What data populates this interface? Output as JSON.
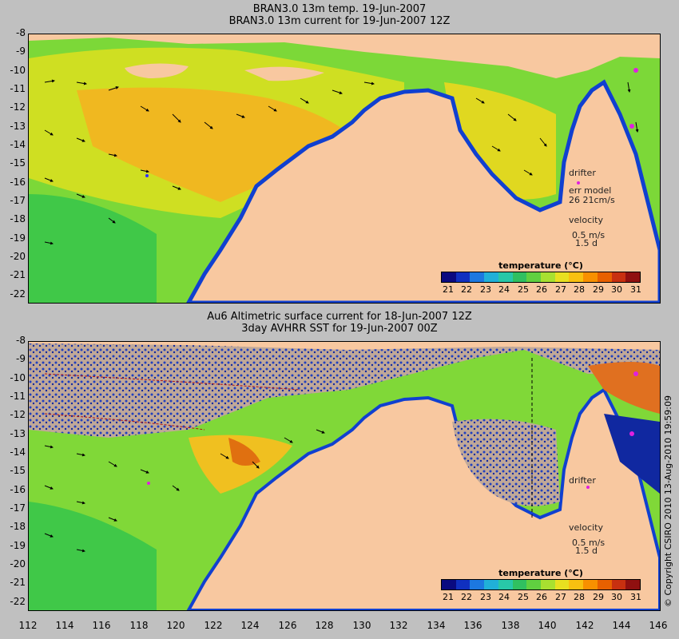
{
  "panel1": {
    "title_line1": "BRAN3.0 13m temp. 19-Jun-2007",
    "title_line2": "BRAN3.0 13m current for 19-Jun-2007 12Z",
    "drifter_label": "drifter",
    "err_label": "err model",
    "err_values": "26  21cm/s",
    "velocity_label": "velocity",
    "velocity_value": "0.5 m/s",
    "velocity_days": "1.5 d"
  },
  "panel2": {
    "title_line1": "Au6 Altimetric surface current for 18-Jun-2007 12Z",
    "title_line2": "3day AVHRR SST for 19-Jun-2007 00Z",
    "drifter_label": "drifter",
    "velocity_label": "velocity",
    "velocity_value": "0.5 m/s",
    "velocity_days": "1.5 d"
  },
  "legend": {
    "title": "temperature (°C)",
    "ticks": [
      "21",
      "22",
      "23",
      "24",
      "25",
      "26",
      "27",
      "28",
      "29",
      "30",
      "31"
    ],
    "colors": [
      "#0a0a80",
      "#1030c0",
      "#1c78e0",
      "#20b0d8",
      "#28c8a8",
      "#30c060",
      "#60d040",
      "#a8e030",
      "#e8e020",
      "#f8c010",
      "#f89000",
      "#e86000",
      "#c83010",
      "#901010"
    ]
  },
  "yaxis_labels": [
    "-8",
    "-9",
    "-10",
    "-11",
    "-12",
    "-13",
    "-14",
    "-15",
    "-16",
    "-17",
    "-18",
    "-19",
    "-20",
    "-21",
    "-22"
  ],
  "xaxis_labels": [
    "112",
    "114",
    "116",
    "118",
    "120",
    "122",
    "124",
    "126",
    "128",
    "130",
    "132",
    "134",
    "136",
    "138",
    "140",
    "142",
    "144",
    "146"
  ],
  "copyright": "© Copyright CSIRO 2010   13-Aug-2010 19:59:09",
  "colors": {
    "land": "#f8c8a0",
    "ocean_warm": "#f0c020",
    "ocean_mid": "#90e030",
    "ocean_cool": "#30c040",
    "coast_cold": "#1040d0",
    "cloud": "#c0a898",
    "drifter": "#e020e0"
  }
}
